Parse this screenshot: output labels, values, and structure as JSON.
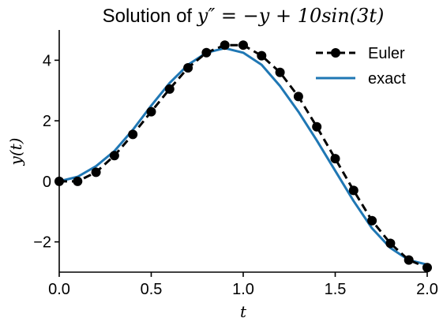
{
  "chart_data": {
    "type": "line",
    "title": "Solution of y″ = −y + 10sin(3t)",
    "title_prefix": "Solution of ",
    "title_math": "y″ = −y + 10sin(3t)",
    "xlabel": "t",
    "ylabel": "y(t)",
    "xlim": [
      0.0,
      2.0
    ],
    "ylim": [
      -3.0,
      5.0
    ],
    "x_ticks": [
      0.0,
      0.5,
      1.0,
      1.5,
      2.0
    ],
    "x_tick_labels": [
      "0.0",
      "0.5",
      "1.0",
      "1.5",
      "2.0"
    ],
    "y_ticks": [
      -2,
      0,
      2,
      4
    ],
    "y_tick_labels": [
      "−2",
      "0",
      "2",
      "4"
    ],
    "grid": false,
    "legend_position": "top-right",
    "series": [
      {
        "name": "Euler",
        "style": "dashed-with-markers",
        "color": "#000000",
        "x": [
          0.0,
          0.1,
          0.2,
          0.3,
          0.4,
          0.5,
          0.6,
          0.7,
          0.8,
          0.9,
          1.0,
          1.1,
          1.2,
          1.3,
          1.4,
          1.5,
          1.6,
          1.7,
          1.8,
          1.9,
          2.0
        ],
        "y": [
          0.0,
          0.0,
          0.3,
          0.85,
          1.55,
          2.3,
          3.05,
          3.75,
          4.25,
          4.5,
          4.5,
          4.15,
          3.6,
          2.8,
          1.8,
          0.75,
          -0.3,
          -1.3,
          -2.05,
          -2.6,
          -2.85
        ]
      },
      {
        "name": "exact",
        "style": "solid",
        "color": "#1f77b4",
        "x": [
          0.0,
          0.1,
          0.2,
          0.3,
          0.4,
          0.5,
          0.6,
          0.7,
          0.8,
          0.9,
          1.0,
          1.1,
          1.2,
          1.3,
          1.4,
          1.5,
          1.6,
          1.7,
          1.8,
          1.9,
          2.0
        ],
        "y": [
          0.0,
          0.15,
          0.5,
          1.0,
          1.7,
          2.5,
          3.25,
          3.85,
          4.25,
          4.4,
          4.25,
          3.85,
          3.15,
          2.3,
          1.35,
          0.35,
          -0.65,
          -1.55,
          -2.2,
          -2.6,
          -2.75
        ]
      }
    ]
  }
}
